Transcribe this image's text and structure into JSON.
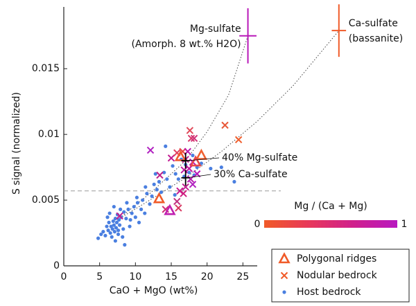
{
  "chart_data": {
    "type": "scatter",
    "x_label": "CaO + MgO (wt%)",
    "y_label": "S signal (normalized)",
    "xlim": [
      0,
      27
    ],
    "ylim": [
      0,
      0.0197
    ],
    "xticks": [
      0,
      5,
      10,
      15,
      20,
      25
    ],
    "yticks": [
      0,
      0.005,
      0.01,
      0.015
    ],
    "hline": 0.0057,
    "series": [
      {
        "name": "Polygonal ridges",
        "marker": "triangle",
        "color": "#f05a28",
        "x": [
          13.3,
          16.3,
          19.2,
          18.4,
          14.8
        ],
        "values": [
          0.0051,
          0.0083,
          0.0084,
          0.0079,
          0.0042
        ],
        "colors": [
          "#f05a28",
          "#f05a30",
          "#f06030",
          "#e84848",
          "#c020b0"
        ]
      },
      {
        "name": "Nodular bedrock",
        "marker": "x",
        "color": "#f05a28",
        "x": [
          12.1,
          13.4,
          15.0,
          15.8,
          16.6,
          17.6,
          17.8,
          18.2,
          17.0,
          17.3,
          18.0,
          17.5,
          18.6,
          17.0,
          16.2,
          16.7,
          15.8,
          14.2,
          16.0,
          18.0,
          17.7,
          22.5,
          24.4,
          7.8,
          16.8
        ],
        "values": [
          0.0088,
          0.0069,
          0.0082,
          0.0086,
          0.0087,
          0.0103,
          0.0097,
          0.0097,
          0.0081,
          0.0087,
          0.0079,
          0.0074,
          0.007,
          0.006,
          0.0057,
          0.0055,
          0.0049,
          0.0043,
          0.0044,
          0.0062,
          0.0066,
          0.0107,
          0.0096,
          0.0038,
          0.0073
        ],
        "colors": [
          "#b020c0",
          "#c0208a",
          "#c01890",
          "#e04060",
          "#e84848",
          "#e04858",
          "#d83868",
          "#d03078",
          "#c02090",
          "#b818b0",
          "#b818b8",
          "#c018a0",
          "#b818b8",
          "#c02090",
          "#c81890",
          "#d02080",
          "#c03080",
          "#d03078",
          "#d83860",
          "#b020c0",
          "#b818b0",
          "#e85838",
          "#f06030",
          "#c02090",
          "#c018a0"
        ]
      },
      {
        "name": "Host bedrock",
        "marker": "dot",
        "color": "#4a7fe0",
        "x": [
          4.8,
          5.2,
          5.5,
          5.8,
          6.0,
          6.2,
          6.3,
          6.5,
          6.6,
          6.8,
          6.9,
          7.0,
          7.1,
          7.2,
          7.3,
          7.4,
          7.5,
          7.6,
          7.7,
          7.8,
          8.0,
          8.2,
          8.4,
          8.5,
          8.7,
          9.0,
          9.2,
          9.5,
          9.8,
          10.0,
          10.3,
          10.5,
          10.8,
          11.0,
          11.3,
          11.6,
          12.0,
          12.3,
          12.6,
          13.0,
          13.3,
          13.6,
          14.0,
          14.4,
          14.8,
          15.2,
          15.6,
          16.0,
          16.4,
          17.0,
          17.5,
          18.0,
          18.6,
          19.2,
          20.5,
          22.0,
          23.8,
          6.1,
          6.7,
          7.2,
          7.9,
          8.3,
          8.8,
          9.3,
          10.2,
          11.4,
          12.8,
          14.2,
          15.5,
          16.8,
          18.2,
          6.4,
          7.0,
          7.6
        ],
        "values": [
          0.0021,
          0.0024,
          0.0026,
          0.0023,
          0.003,
          0.0027,
          0.0033,
          0.0025,
          0.003,
          0.0028,
          0.0034,
          0.0031,
          0.0026,
          0.0036,
          0.0029,
          0.0033,
          0.0039,
          0.0027,
          0.0035,
          0.0031,
          0.0037,
          0.0022,
          0.0041,
          0.0016,
          0.0036,
          0.0043,
          0.003,
          0.004,
          0.0045,
          0.0037,
          0.0048,
          0.0033,
          0.0043,
          0.005,
          0.004,
          0.0055,
          0.0047,
          0.0053,
          0.0062,
          0.0058,
          0.0064,
          0.0056,
          0.0071,
          0.0066,
          0.006,
          0.0076,
          0.007,
          0.0066,
          0.0081,
          0.0077,
          0.0071,
          0.0084,
          0.0075,
          0.0078,
          0.0074,
          0.0075,
          0.0064,
          0.0037,
          0.0022,
          0.0019,
          0.0043,
          0.0028,
          0.0048,
          0.0035,
          0.0052,
          0.006,
          0.007,
          0.0091,
          0.0054,
          0.0068,
          0.0069,
          0.004,
          0.0045,
          0.0024
        ]
      }
    ],
    "endmembers": [
      {
        "lines": [
          "Mg-sulfate",
          "(Amorph. 8 wt.% H2O)"
        ],
        "color": "#b818b8",
        "x": 25.7,
        "xerr": 1.2,
        "y": 0.0175,
        "yerr": 0.0021,
        "side": "left"
      },
      {
        "lines": [
          "Ca-sulfate",
          "(bassanite)"
        ],
        "color": "#f05a28",
        "x": 38.4,
        "xerr": 1.0,
        "y": 0.0179,
        "yerr": 0.002,
        "side": "right"
      }
    ],
    "mixing_curves": [
      {
        "x": [
          7.5,
          12,
          17,
          20,
          23,
          25.7
        ],
        "y": [
          0.0035,
          0.0055,
          0.008,
          0.0102,
          0.013,
          0.0175
        ]
      },
      {
        "x": [
          7.5,
          12,
          17,
          22,
          27,
          32,
          38.4
        ],
        "y": [
          0.0035,
          0.005,
          0.0067,
          0.0087,
          0.011,
          0.0137,
          0.0179
        ]
      }
    ],
    "annotations": [
      {
        "text": "40% Mg-sulfate",
        "x": 17,
        "y": 0.008,
        "xerr": 0.6,
        "yerr": 0.0006
      },
      {
        "text": "30% Ca-sulfate",
        "x": 17,
        "y": 0.0067,
        "xerr": 0.6,
        "yerr": 0.0006
      }
    ],
    "colorbar": {
      "label": "Mg / (Ca + Mg)",
      "range": [
        0,
        1
      ],
      "colors": [
        "#f05a28",
        "#e8385a",
        "#d0208c",
        "#b818c0"
      ]
    },
    "legend": "lower right"
  }
}
